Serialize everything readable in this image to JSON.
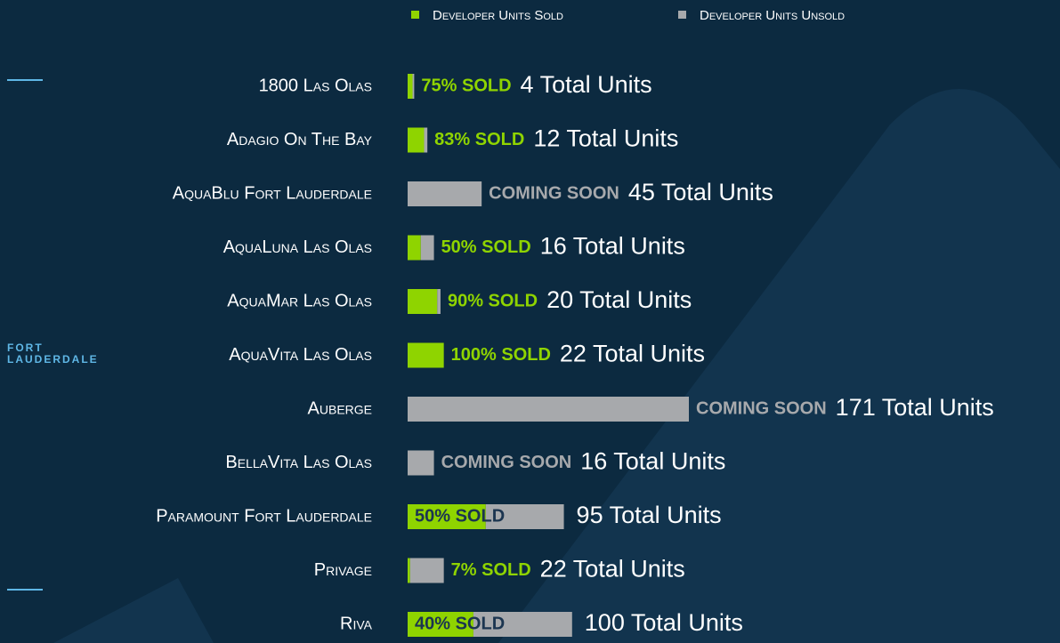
{
  "chart_data": {
    "type": "stacked-barh",
    "sidebar_label": "FORT LAUDERDALE",
    "categories": [
      "1800 Las Olas",
      "Adagio On The Bay",
      "AquaBlu Fort Lauderdale",
      "AquaLuna Las Olas",
      "AquaMar Las Olas",
      "AquaVita Las Olas",
      "Auberge",
      "BellaVita Las Olas",
      "Paramount Fort Lauderdale",
      "Privage",
      "Riva"
    ],
    "series": [
      {
        "name": "Developer Units Sold",
        "color": "#8fd400",
        "values": [
          3,
          10,
          0,
          8,
          18,
          22,
          0,
          0,
          47.5,
          1.5,
          40
        ]
      },
      {
        "name": "Developer Units Unsold",
        "color": "#a7a9ac",
        "values": [
          1,
          2,
          45,
          8,
          2,
          0,
          171,
          16,
          47.5,
          20.5,
          60
        ]
      }
    ],
    "status_labels": [
      "75% SOLD",
      "83% SOLD",
      "COMING SOON",
      "50% SOLD",
      "90% SOLD",
      "100% SOLD",
      "COMING SOON",
      "COMING SOON",
      "50% SOLD",
      "7% SOLD",
      "40% SOLD"
    ],
    "total_labels": [
      "4 Total Units",
      "12 Total Units",
      "45 Total Units",
      "16 Total Units",
      "20 Total Units",
      "22 Total Units",
      "171 Total Units",
      "16 Total Units",
      "95 Total Units",
      "22 Total Units",
      "100 Total Units"
    ],
    "xlim": [
      0,
      171
    ]
  }
}
